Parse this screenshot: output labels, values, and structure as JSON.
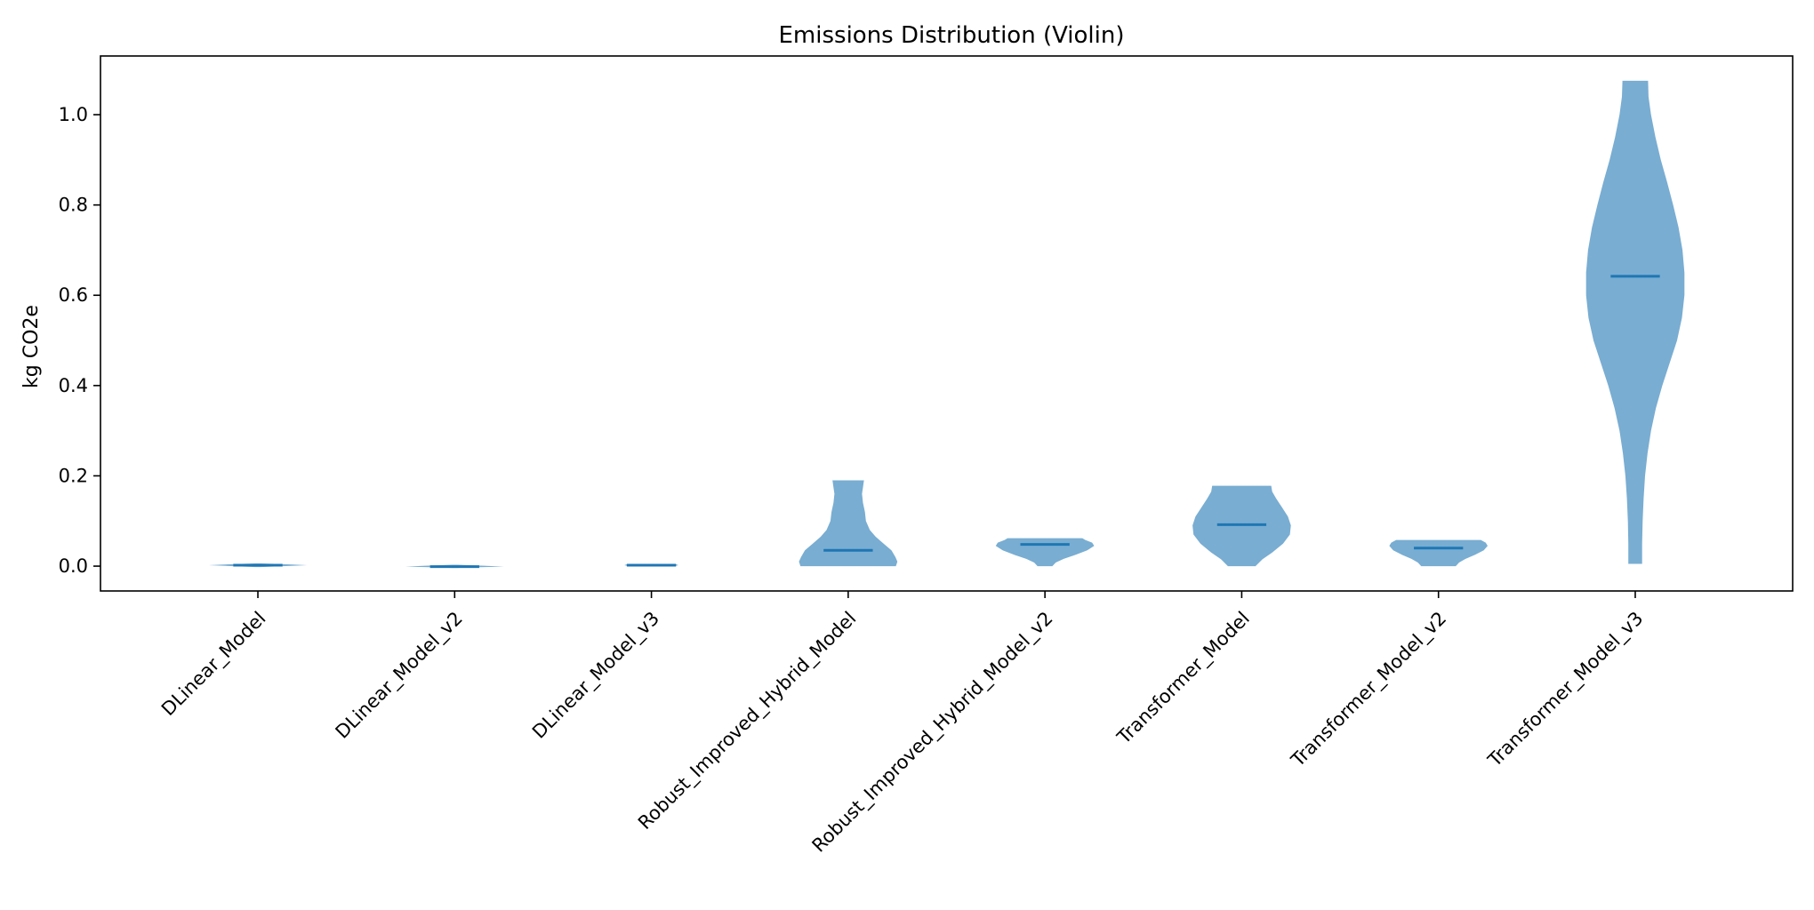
{
  "chart_data": {
    "type": "violin",
    "title": "Emissions Distribution (Violin)",
    "xlabel": "",
    "ylabel": "kg CO2e",
    "ylim": [
      -0.055,
      1.13
    ],
    "yticks": [
      0.0,
      0.2,
      0.4,
      0.6,
      0.8,
      1.0
    ],
    "ytick_labels": [
      "0.0",
      "0.2",
      "0.4",
      "0.6",
      "0.8",
      "1.0"
    ],
    "grid": false,
    "legend": "none",
    "colors": {
      "violin_fill": "#1f77b4",
      "violin_opacity": 0.6,
      "median_line": "#1f77b4",
      "axes": "#000000"
    },
    "categories": [
      "DLinear_Model",
      "DLinear_Model_v2",
      "DLinear_Model_v3",
      "Robust_Improved_Hybrid_Model",
      "Robust_Improved_Hybrid_Model_v2",
      "Transformer_Model",
      "Transformer_Model_v2",
      "Transformer_Model_v3"
    ],
    "violins": [
      {
        "category": "DLinear_Model",
        "min": -0.002,
        "max": 0.006,
        "median": 0.002,
        "profile": [
          [
            -0.002,
            0.05
          ],
          [
            0.0,
            0.5
          ],
          [
            0.002,
            1.0
          ],
          [
            0.004,
            0.6
          ],
          [
            0.006,
            0.05
          ]
        ]
      },
      {
        "category": "DLinear_Model_v2",
        "min": -0.004,
        "max": 0.003,
        "median": -0.001,
        "profile": [
          [
            -0.004,
            0.05
          ],
          [
            -0.002,
            0.6
          ],
          [
            -0.001,
            1.0
          ],
          [
            0.001,
            0.6
          ],
          [
            0.003,
            0.05
          ]
        ]
      },
      {
        "category": "DLinear_Model_v3",
        "min": 0.0,
        "max": 0.005,
        "median": 0.002,
        "profile": [
          [
            0.0,
            0.3
          ],
          [
            0.001,
            0.5
          ],
          [
            0.002,
            0.55
          ],
          [
            0.004,
            0.5
          ],
          [
            0.005,
            0.3
          ]
        ]
      },
      {
        "category": "Robust_Improved_Hybrid_Model",
        "min": 0.0,
        "max": 0.19,
        "median": 0.035,
        "profile": [
          [
            0.0,
            0.97
          ],
          [
            0.01,
            1.0
          ],
          [
            0.02,
            0.96
          ],
          [
            0.035,
            0.88
          ],
          [
            0.05,
            0.72
          ],
          [
            0.065,
            0.56
          ],
          [
            0.08,
            0.44
          ],
          [
            0.1,
            0.36
          ],
          [
            0.12,
            0.34
          ],
          [
            0.14,
            0.3
          ],
          [
            0.16,
            0.28
          ],
          [
            0.175,
            0.3
          ],
          [
            0.19,
            0.32
          ]
        ]
      },
      {
        "category": "Robust_Improved_Hybrid_Model_v2",
        "min": 0.0,
        "max": 0.062,
        "median": 0.048,
        "profile": [
          [
            0.0,
            0.15
          ],
          [
            0.008,
            0.22
          ],
          [
            0.016,
            0.38
          ],
          [
            0.025,
            0.62
          ],
          [
            0.035,
            0.86
          ],
          [
            0.045,
            1.0
          ],
          [
            0.052,
            0.96
          ],
          [
            0.058,
            0.82
          ],
          [
            0.062,
            0.76
          ]
        ]
      },
      {
        "category": "Transformer_Model",
        "min": 0.0,
        "max": 0.178,
        "median": 0.092,
        "profile": [
          [
            0.0,
            0.28
          ],
          [
            0.015,
            0.42
          ],
          [
            0.03,
            0.62
          ],
          [
            0.05,
            0.84
          ],
          [
            0.07,
            0.98
          ],
          [
            0.09,
            1.0
          ],
          [
            0.11,
            0.94
          ],
          [
            0.13,
            0.82
          ],
          [
            0.15,
            0.7
          ],
          [
            0.165,
            0.62
          ],
          [
            0.178,
            0.6
          ]
        ]
      },
      {
        "category": "Transformer_Model_v2",
        "min": 0.0,
        "max": 0.058,
        "median": 0.04,
        "profile": [
          [
            0.0,
            0.35
          ],
          [
            0.008,
            0.42
          ],
          [
            0.016,
            0.55
          ],
          [
            0.025,
            0.74
          ],
          [
            0.035,
            0.92
          ],
          [
            0.045,
            1.0
          ],
          [
            0.052,
            0.96
          ],
          [
            0.058,
            0.86
          ]
        ]
      },
      {
        "category": "Transformer_Model_v3",
        "min": 0.005,
        "max": 1.075,
        "median": 0.642,
        "profile": [
          [
            0.005,
            0.14
          ],
          [
            0.05,
            0.14
          ],
          [
            0.1,
            0.15
          ],
          [
            0.15,
            0.17
          ],
          [
            0.2,
            0.2
          ],
          [
            0.25,
            0.25
          ],
          [
            0.3,
            0.32
          ],
          [
            0.35,
            0.42
          ],
          [
            0.4,
            0.55
          ],
          [
            0.45,
            0.7
          ],
          [
            0.5,
            0.85
          ],
          [
            0.55,
            0.95
          ],
          [
            0.6,
            1.0
          ],
          [
            0.65,
            1.0
          ],
          [
            0.7,
            0.96
          ],
          [
            0.75,
            0.88
          ],
          [
            0.8,
            0.77
          ],
          [
            0.85,
            0.65
          ],
          [
            0.9,
            0.52
          ],
          [
            0.95,
            0.41
          ],
          [
            1.0,
            0.32
          ],
          [
            1.04,
            0.27
          ],
          [
            1.075,
            0.26
          ]
        ]
      }
    ]
  }
}
